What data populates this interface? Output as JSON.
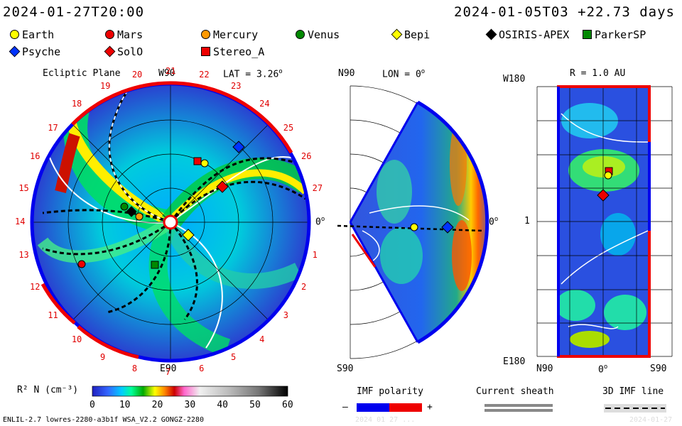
{
  "header": {
    "date_left": "2024-01-27T20:00",
    "date_right": "2024-01-05T03 +22.73 days"
  },
  "legend": [
    {
      "name": "Earth",
      "color": "#ffff00",
      "shape": "circle"
    },
    {
      "name": "Mars",
      "color": "#ee0000",
      "shape": "circle"
    },
    {
      "name": "Mercury",
      "color": "#ff9900",
      "shape": "circle"
    },
    {
      "name": "Venus",
      "color": "#008800",
      "shape": "circle"
    },
    {
      "name": "Bepi",
      "color": "#ffff00",
      "shape": "diamond"
    },
    {
      "name": "OSIRIS-APEX",
      "color": "#000000",
      "shape": "diamond"
    },
    {
      "name": "ParkerSP",
      "color": "#008800",
      "shape": "square"
    },
    {
      "name": "Psyche",
      "color": "#0033ff",
      "shape": "diamond"
    },
    {
      "name": "SolO",
      "color": "#ee0000",
      "shape": "diamond"
    },
    {
      "name": "Stereo_A",
      "color": "#ee0000",
      "shape": "square"
    }
  ],
  "panel_ecliptic": {
    "title": "Ecliptic Plane",
    "top_label": "W90",
    "bottom_label": "E90",
    "right_label": "0",
    "lat_label": "LAT = 3.26",
    "degree_sign": "o",
    "carrington_ticks": [
      "1",
      "2",
      "3",
      "4",
      "5",
      "6",
      "7",
      "8",
      "9",
      "10",
      "11",
      "12",
      "13",
      "14",
      "15",
      "16",
      "17",
      "18",
      "19",
      "20",
      "21",
      "22",
      "23",
      "24",
      "25",
      "26",
      "27"
    ]
  },
  "panel_meridional": {
    "top_label": "N90",
    "bottom_label": "S90",
    "lon_label": "LON = 0",
    "right_label": "0",
    "degree_sign": "o"
  },
  "panel_radius": {
    "title": "R = 1.0 AU",
    "top_left_label": "W180",
    "bottom_left_label": "E180",
    "mid_label": "1",
    "x_labels": [
      "N90",
      "0",
      "S90"
    ],
    "degree_sign": "o"
  },
  "colorbar": {
    "label": "R² N (cm⁻³)",
    "ticks": [
      "0",
      "10",
      "20",
      "30",
      "40",
      "50",
      "60"
    ]
  },
  "imf_polarity": {
    "label": "IMF polarity",
    "minus": "–",
    "plus": "+",
    "colors": [
      "#0000ee",
      "#ee0000"
    ]
  },
  "current_sheath": {
    "label": "Current sheath"
  },
  "imf_line": {
    "label": "3D IMF line"
  },
  "footer": {
    "left": "ENLIL-2.7 lowres-2280-a3b1f WSA_V2.2 GONGZ-2280",
    "middle": "2024 01 27 ...",
    "right": "2024-01-27"
  }
}
